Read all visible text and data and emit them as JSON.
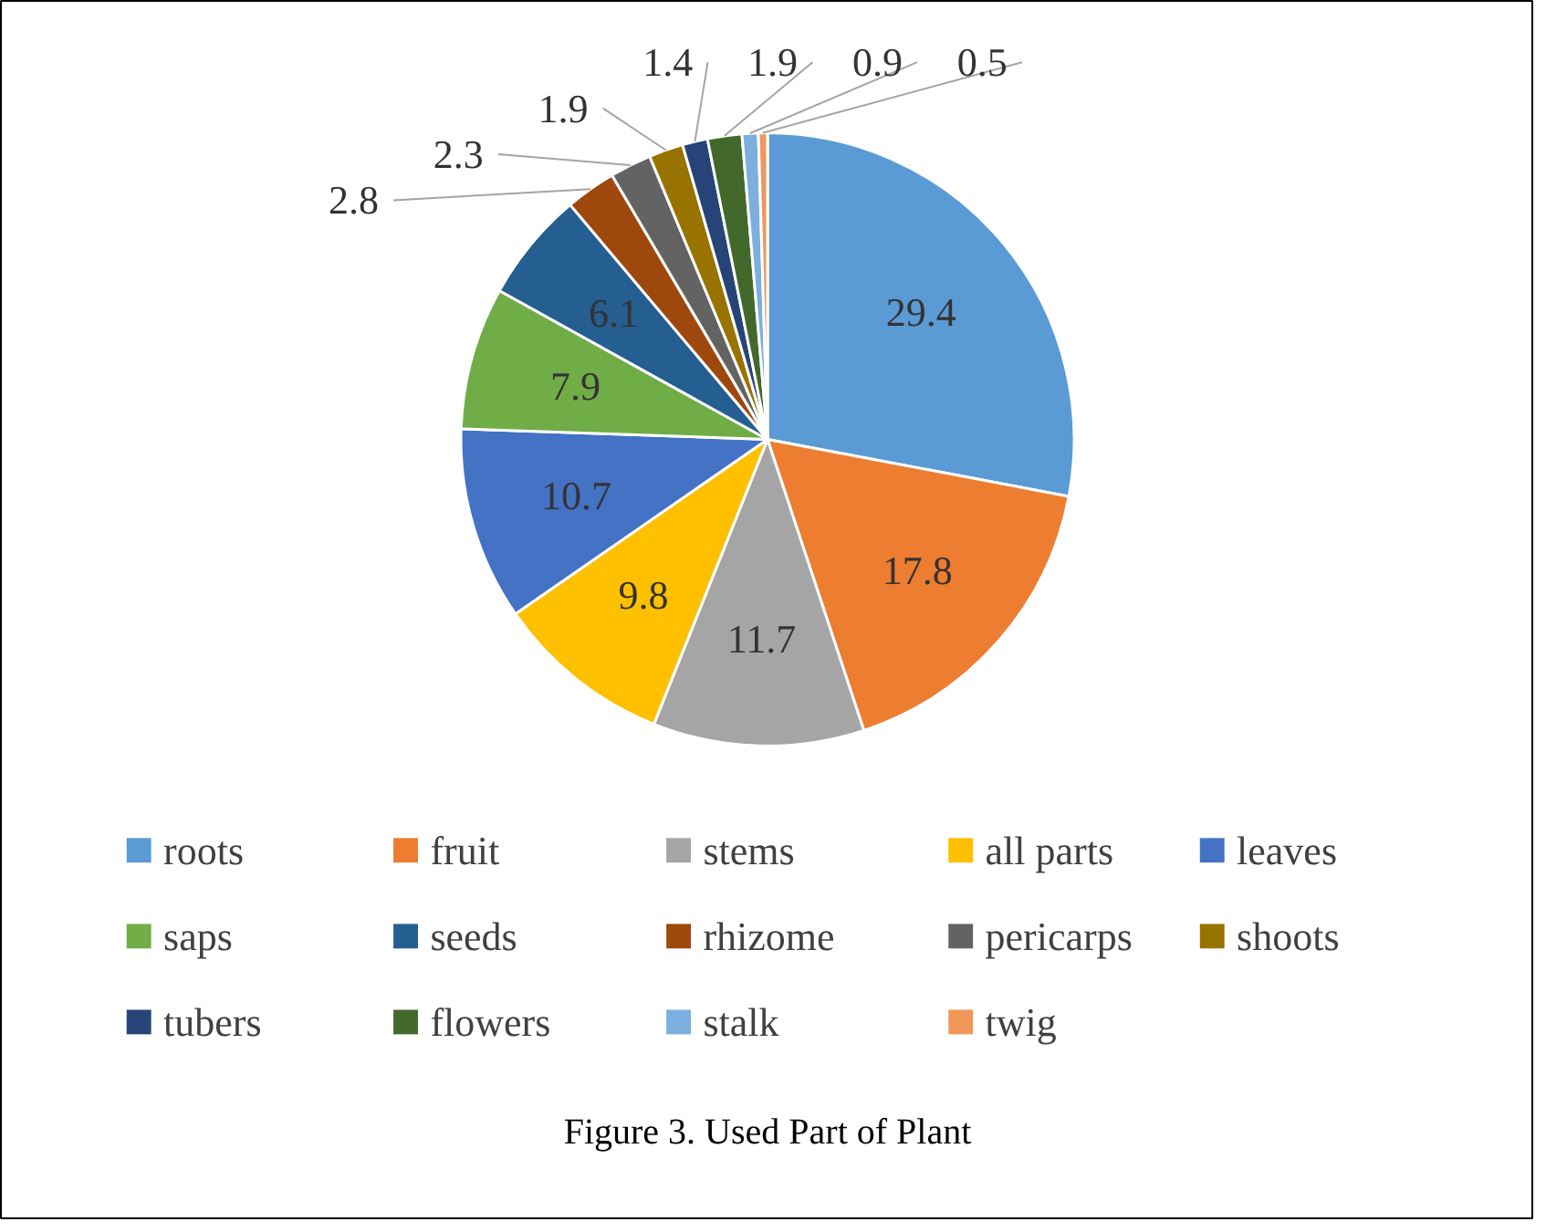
{
  "chart_data": {
    "type": "pie",
    "title": "Figure 3. Used Part of Plant",
    "categories": [
      "roots",
      "fruit",
      "stems",
      "all parts",
      "leaves",
      "saps",
      "seeds",
      "rhizome",
      "pericarps",
      "shoots",
      "tubers",
      "flowers",
      "stalk",
      "twig"
    ],
    "values": [
      29.4,
      17.8,
      11.7,
      9.8,
      10.7,
      7.9,
      6.1,
      2.8,
      2.3,
      1.9,
      1.4,
      1.9,
      0.9,
      0.5
    ],
    "colors": [
      "#5b9bd5",
      "#ed7d31",
      "#a5a5a5",
      "#ffc000",
      "#4472c4",
      "#70ad47",
      "#255e91",
      "#9e480e",
      "#636363",
      "#997300",
      "#264478",
      "#43682b",
      "#7cafdd",
      "#f1975a"
    ],
    "data_labels": true,
    "legend": "bottom"
  }
}
